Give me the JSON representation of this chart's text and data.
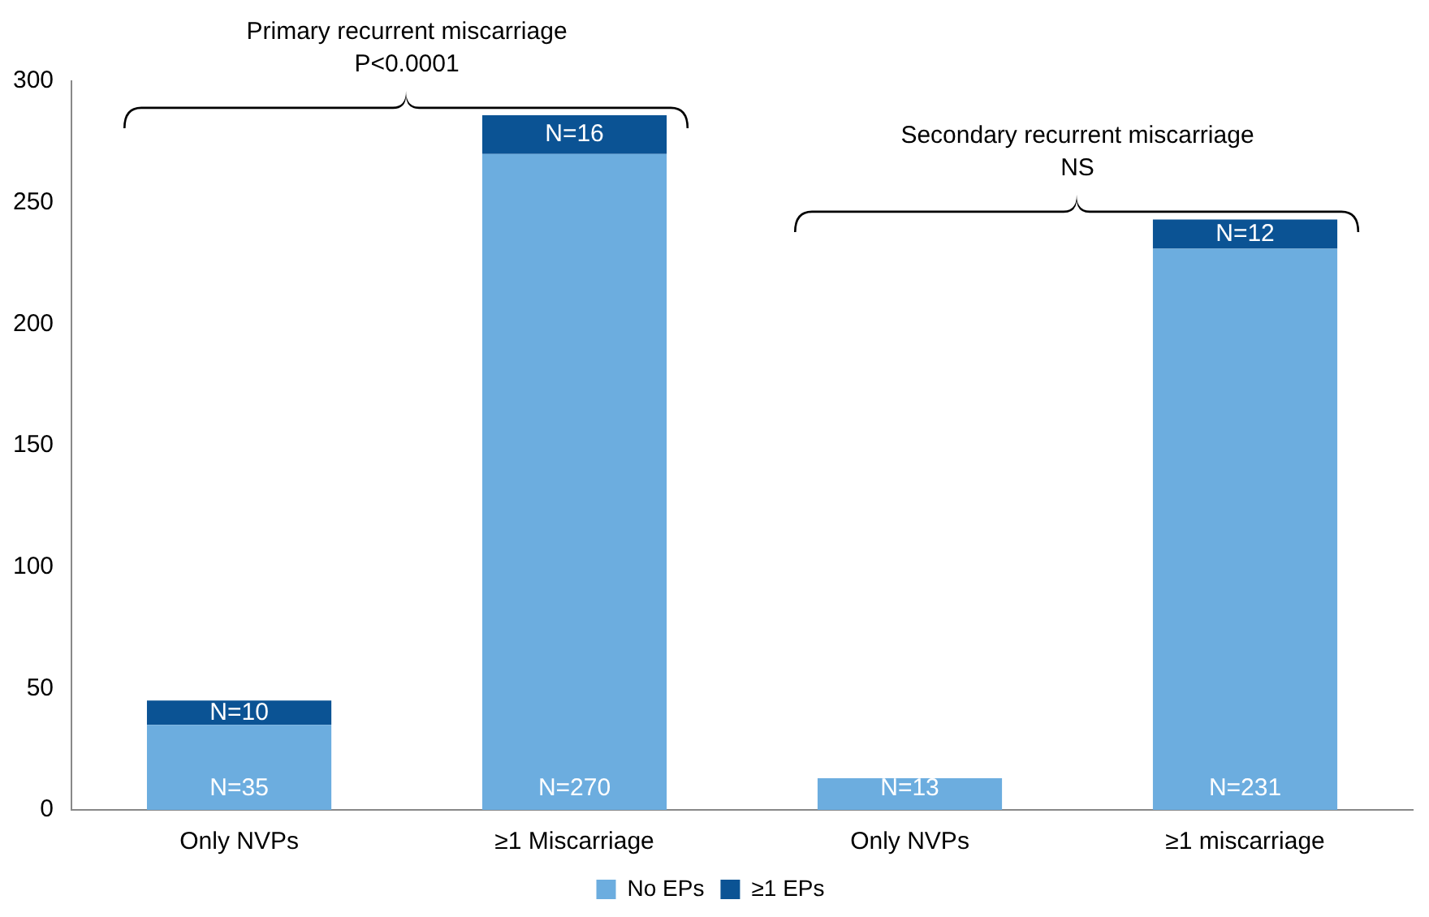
{
  "chart_data": {
    "type": "bar",
    "stacked": true,
    "categories": [
      "Only NVPs",
      "≥1 Miscarriage",
      "Only NVPs",
      "≥1 miscarriage"
    ],
    "series": [
      {
        "name": "No EPs",
        "color": "#6caddf",
        "values": [
          35,
          270,
          13,
          231
        ],
        "value_labels": [
          "N=35",
          "N=270",
          "N=13",
          "N=231"
        ]
      },
      {
        "name": "≥1 EPs",
        "color": "#0b5394",
        "values": [
          10,
          16,
          null,
          12
        ],
        "value_labels": [
          "N=10",
          "N=16",
          null,
          "N=12"
        ]
      }
    ],
    "ylim": [
      0,
      300
    ],
    "yticks": [
      0,
      50,
      100,
      150,
      200,
      250,
      300
    ],
    "grid": false,
    "legend": "bottom",
    "annotations": [
      "Primary recurrent miscarriage",
      "P<0.0001",
      "Secondary recurrent miscarriage",
      "NS"
    ]
  }
}
